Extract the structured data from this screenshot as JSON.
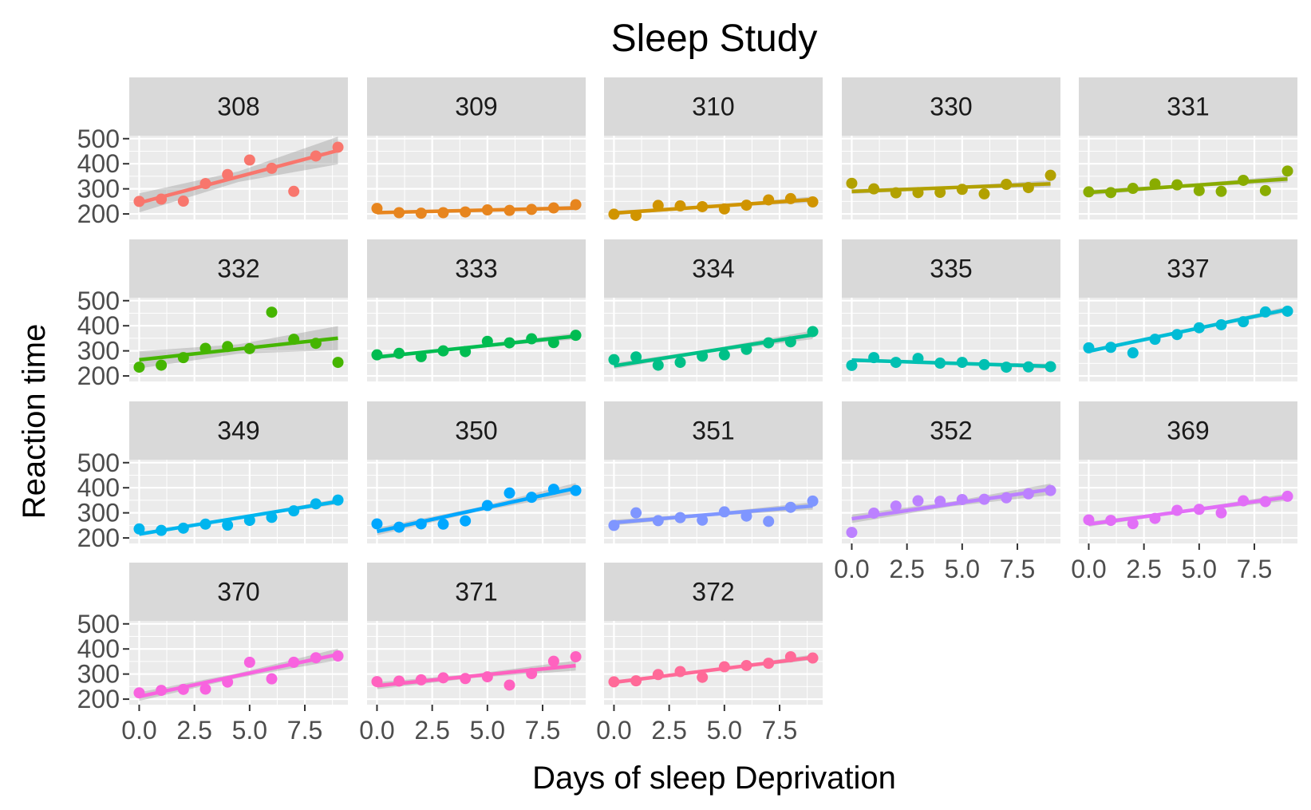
{
  "chart_data": {
    "type": "scatter",
    "title": "Sleep Study",
    "xlabel": "Days of sleep Deprivation",
    "ylabel": "Reaction time",
    "xlim": [
      -0.45,
      9.45
    ],
    "ylim": [
      178,
      512
    ],
    "x_ticks": [
      0,
      2.5,
      5,
      7.5
    ],
    "x_tick_labels": [
      "0.0",
      "2.5",
      "5.0",
      "7.5"
    ],
    "y_ticks": [
      200,
      300,
      400,
      500
    ],
    "y_tick_labels": [
      "200",
      "300",
      "400",
      "500"
    ],
    "grid": true,
    "legend": "none",
    "x": [
      0,
      1,
      2,
      3,
      4,
      5,
      6,
      7,
      8,
      9
    ],
    "series": [
      {
        "name": "308",
        "color": "#F8766D",
        "values": [
          250,
          259,
          251,
          321,
          357,
          415,
          382,
          290,
          431,
          466
        ],
        "fit": [
          244.2,
          452.8
        ],
        "band": [
          38,
          55
        ]
      },
      {
        "name": "309",
        "color": "#E7851E",
        "values": [
          222,
          205,
          203,
          205,
          208,
          216,
          214,
          218,
          224,
          237
        ],
        "fit": [
          205.1,
          223.7
        ],
        "band": [
          7,
          9
        ]
      },
      {
        "name": "310",
        "color": "#D09400",
        "values": [
          199,
          194,
          234,
          232,
          229,
          220,
          235,
          256,
          261,
          248
        ],
        "fit": [
          203.5,
          257.3
        ],
        "band": [
          9,
          12
        ]
      },
      {
        "name": "330",
        "color": "#B2A100",
        "values": [
          322,
          300,
          284,
          285,
          286,
          298,
          280,
          318,
          305,
          354
        ],
        "fit": [
          289.7,
          319.9
        ],
        "band": [
          10,
          14
        ]
      },
      {
        "name": "331",
        "color": "#89AC00",
        "values": [
          288,
          285,
          302,
          320,
          316,
          293,
          290,
          334,
          293,
          371
        ],
        "fit": [
          285.7,
          339.5
        ],
        "band": [
          11,
          14
        ]
      },
      {
        "name": "332",
        "color": "#45B500",
        "values": [
          235,
          243,
          273,
          310,
          317,
          309,
          454,
          346,
          330,
          254
        ],
        "fit": [
          264.3,
          350.6
        ],
        "band": [
          34,
          48
        ]
      },
      {
        "name": "333",
        "color": "#00BC51",
        "values": [
          284,
          290,
          277,
          300,
          297,
          338,
          332,
          348,
          333,
          362
        ],
        "fit": [
          275.0,
          358.6
        ],
        "band": [
          9,
          13
        ]
      },
      {
        "name": "334",
        "color": "#00C087",
        "values": [
          265,
          276,
          243,
          254,
          279,
          284,
          306,
          332,
          336,
          377
        ],
        "fit": [
          240.2,
          363.9
        ],
        "band": [
          12,
          17
        ]
      },
      {
        "name": "335",
        "color": "#00C0B2",
        "values": [
          242,
          273,
          254,
          270,
          251,
          254,
          245,
          235,
          236,
          237
        ],
        "fit": [
          263.0,
          238.5
        ],
        "band": [
          8,
          11
        ]
      },
      {
        "name": "337",
        "color": "#00BCD6",
        "values": [
          312,
          314,
          292,
          346,
          365,
          392,
          404,
          416,
          455,
          458
        ],
        "fit": [
          298.5,
          464.9
        ],
        "band": [
          8,
          12
        ]
      },
      {
        "name": "349",
        "color": "#00B5EE",
        "values": [
          236,
          230,
          239,
          255,
          251,
          270,
          282,
          308,
          336,
          351
        ],
        "fit": [
          215.2,
          345.1
        ],
        "band": [
          8,
          11
        ]
      },
      {
        "name": "350",
        "color": "#00A7FF",
        "values": [
          256,
          243,
          256,
          255,
          268,
          329,
          379,
          362,
          394,
          389
        ],
        "fit": [
          225.8,
          398.2
        ],
        "band": [
          15,
          21
        ]
      },
      {
        "name": "351",
        "color": "#7F96FF",
        "values": [
          250,
          300,
          269,
          281,
          271,
          304,
          287,
          266,
          322,
          347
        ],
        "fit": [
          261.1,
          327.4
        ],
        "band": [
          11,
          15
        ]
      },
      {
        "name": "352",
        "color": "#BC81FF",
        "values": [
          222,
          299,
          327,
          348,
          346,
          353,
          354,
          360,
          376,
          389
        ],
        "fit": [
          276.4,
          393.7
        ],
        "band": [
          17,
          23
        ]
      },
      {
        "name": "369",
        "color": "#E26EF7",
        "values": [
          272,
          270,
          257,
          278,
          310,
          314,
          300,
          348,
          345,
          366
        ],
        "fit": [
          254.9,
          362.4
        ],
        "band": [
          10,
          14
        ]
      },
      {
        "name": "370",
        "color": "#F863DF",
        "values": [
          225,
          235,
          239,
          240,
          268,
          347,
          281,
          347,
          365,
          372
        ],
        "fit": [
          210.4,
          378.3
        ],
        "band": [
          17,
          23
        ]
      },
      {
        "name": "371",
        "color": "#FF62BF",
        "values": [
          270,
          272,
          277,
          285,
          282,
          289,
          256,
          302,
          351,
          369
        ],
        "fit": [
          253.6,
          333.6
        ],
        "band": [
          14,
          20
        ]
      },
      {
        "name": "372",
        "color": "#FF6A98",
        "values": [
          269,
          273,
          298,
          310,
          287,
          329,
          334,
          343,
          369,
          364
        ],
        "fit": [
          267.0,
          366.4
        ],
        "band": [
          8,
          11
        ]
      }
    ]
  }
}
